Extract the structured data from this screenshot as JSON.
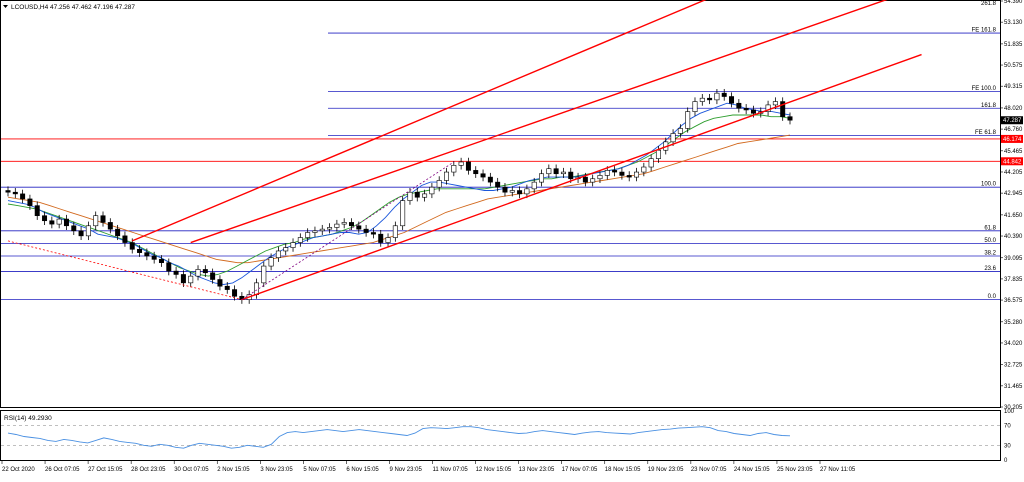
{
  "header": {
    "symbol_line": "LCOUSD,H4  47.256 47.462 47.196 47.287",
    "dropdown_icon": "triangle-down-icon"
  },
  "colors": {
    "background": "#ffffff",
    "frame": "#000000",
    "candle_up": "#ffffff",
    "candle_down": "#000000",
    "ma_fast": "#1a56db",
    "ma_mid": "#2e9e2e",
    "ma_slow": "#d2691e",
    "channel": "#ff0000",
    "fib_line": "#2020c0",
    "horizontal_red": "#ff0000",
    "price_tag_bg": "#000000",
    "level_tag_bg": "#ff0000",
    "rsi_line": "#4a90e2"
  },
  "chart_data": [
    {
      "type": "candlestick",
      "symbol": "LCOUSD",
      "timeframe": "H4",
      "ylim": [
        30.205,
        54.39
      ],
      "price_axis": [
        "54.390",
        "53.130",
        "51.835",
        "50.575",
        "49.315",
        "48.020",
        "46.760",
        "45.465",
        "44.205",
        "42.945",
        "41.650",
        "40.390",
        "39.095",
        "37.835",
        "36.575",
        "35.280",
        "34.020",
        "32.725",
        "31.465",
        "30.205"
      ],
      "date_axis": [
        "22 Oct 2020",
        "26 Oct 07:05",
        "27 Oct 15:05",
        "28 Oct 23:05",
        "30 Oct 07:05",
        "2 Nov 15:05",
        "3 Nov 23:05",
        "5 Nov 07:05",
        "6 Nov 15:05",
        "9 Nov 23:05",
        "11 Nov 07:05",
        "12 Nov 15:05",
        "13 Nov 23:05",
        "17 Nov 07:05",
        "18 Nov 15:05",
        "19 Nov 23:05",
        "23 Nov 07:05",
        "24 Nov 15:05",
        "25 Nov 23:05",
        "27 Nov 11:05"
      ],
      "current_price": "47.287",
      "red_levels": [
        {
          "value": 46.174,
          "label": "46.174"
        },
        {
          "value": 44.842,
          "label": "44.842"
        }
      ],
      "fib_levels": [
        {
          "value": 54.6,
          "label": "261.8"
        },
        {
          "value": 52.48,
          "label": "FE 161.8"
        },
        {
          "value": 49.0,
          "label": "FE 100.0"
        },
        {
          "value": 48.0,
          "label": "161.8"
        },
        {
          "value": 46.37,
          "label": "FE 61.8"
        },
        {
          "value": 43.3,
          "label": "100.0"
        },
        {
          "value": 40.7,
          "label": "61.8"
        },
        {
          "value": 39.95,
          "label": "50.0"
        },
        {
          "value": 39.2,
          "label": "38.2"
        },
        {
          "value": 38.28,
          "label": "23.6"
        },
        {
          "value": 36.6,
          "label": "0.0"
        }
      ],
      "closes": [
        43.0,
        42.9,
        42.6,
        42.2,
        41.6,
        41.3,
        41.1,
        41.4,
        41.0,
        40.7,
        40.4,
        41.0,
        41.6,
        41.2,
        40.8,
        40.4,
        40.0,
        39.6,
        39.4,
        39.2,
        39.0,
        38.8,
        38.3,
        38.1,
        37.6,
        38.0,
        38.4,
        38.2,
        37.8,
        37.4,
        37.2,
        36.8,
        36.6,
        36.9,
        37.6,
        38.6,
        39.1,
        39.5,
        39.7,
        40.0,
        40.3,
        40.6,
        40.7,
        40.8,
        40.9,
        41.1,
        41.2,
        41.0,
        40.8,
        40.6,
        40.5,
        40.0,
        40.3,
        41.0,
        42.5,
        43.0,
        42.7,
        42.9,
        43.3,
        43.7,
        44.2,
        44.6,
        44.8,
        44.3,
        44.1,
        43.9,
        43.6,
        43.3,
        43.0,
        43.1,
        42.9,
        43.2,
        43.6,
        44.1,
        44.4,
        44.1,
        44.2,
        43.8,
        43.9,
        43.6,
        43.8,
        44.0,
        44.3,
        44.2,
        44.0,
        43.9,
        44.2,
        44.5,
        45.0,
        45.5,
        46.0,
        46.5,
        46.8,
        47.8,
        48.4,
        48.6,
        48.5,
        48.9,
        48.7,
        48.3,
        48.0,
        47.9,
        47.7,
        47.8,
        48.2,
        48.4,
        47.5,
        47.29
      ],
      "ma_fast": [
        42.5,
        42.4,
        42.3,
        42.1,
        41.8,
        41.6,
        41.4,
        41.2,
        41.0,
        40.8,
        40.5,
        40.4,
        40.3,
        40.1,
        39.9,
        39.6,
        39.3,
        39.1,
        38.8,
        38.6,
        38.3,
        38.0,
        37.8,
        37.6,
        37.5,
        37.6,
        37.9,
        38.3,
        38.7,
        39.1,
        39.4,
        39.7,
        39.9,
        40.1,
        40.3,
        40.4,
        40.5,
        40.6,
        40.6,
        40.5,
        40.6,
        41.0,
        41.5,
        42.1,
        42.6,
        43.0,
        43.4,
        43.6,
        43.6,
        43.5,
        43.4,
        43.3,
        43.2,
        43.1,
        43.1,
        43.2,
        43.3,
        43.5,
        43.7,
        43.8,
        43.9,
        43.9,
        43.9,
        43.9,
        44.0,
        44.1,
        44.2,
        44.3,
        44.4,
        44.6,
        44.9,
        45.2,
        45.6,
        46.0,
        46.5,
        47.0,
        47.4,
        47.7,
        47.9,
        48.1,
        48.3,
        48.2,
        48.0,
        47.9,
        47.8,
        47.8,
        47.7,
        47.6
      ],
      "ma_mid": [
        42.3,
        42.2,
        42.1,
        42.0,
        41.8,
        41.6,
        41.4,
        41.2,
        41.0,
        40.8,
        40.6,
        40.4,
        40.2,
        40.0,
        39.7,
        39.4,
        39.1,
        38.8,
        38.5,
        38.3,
        38.1,
        38.0,
        38.1,
        38.3,
        38.6,
        38.9,
        39.2,
        39.5,
        39.7,
        39.9,
        40.0,
        40.2,
        40.3,
        40.4,
        40.5,
        40.7,
        40.9,
        41.2,
        41.6,
        42.0,
        42.4,
        42.7,
        42.9,
        43.0,
        43.1,
        43.2,
        43.2,
        43.2,
        43.2,
        43.2,
        43.2,
        43.3,
        43.4,
        43.5,
        43.6,
        43.7,
        43.8,
        43.8,
        43.9,
        43.9,
        44.0,
        44.1,
        44.2,
        44.3,
        44.4,
        44.6,
        44.8,
        45.1,
        45.4,
        45.8,
        46.2,
        46.6,
        46.9,
        47.2,
        47.4,
        47.5,
        47.6,
        47.6,
        47.6,
        47.6,
        47.5,
        47.5,
        47.4
      ],
      "ma_slow": [
        42.7,
        42.6,
        42.5,
        42.4,
        42.2,
        42.0,
        41.8,
        41.6,
        41.4,
        41.2,
        41.0,
        40.8,
        40.6,
        40.4,
        40.2,
        40.0,
        39.8,
        39.6,
        39.4,
        39.2,
        39.0,
        38.9,
        38.8,
        38.8,
        38.9,
        39.0,
        39.1,
        39.2,
        39.3,
        39.4,
        39.5,
        39.6,
        39.7,
        39.8,
        39.9,
        40.0,
        40.2,
        40.4,
        40.6,
        40.9,
        41.2,
        41.5,
        41.8,
        42.0,
        42.2,
        42.4,
        42.6,
        42.7,
        42.8,
        42.9,
        43.0,
        43.1,
        43.2,
        43.3,
        43.4,
        43.5,
        43.6,
        43.7,
        43.8,
        43.9,
        44.0,
        44.1,
        44.3,
        44.5,
        44.7,
        44.9,
        45.1,
        45.3,
        45.5,
        45.7,
        45.9,
        46.0,
        46.1,
        46.2,
        46.3,
        46.4
      ]
    },
    {
      "type": "line",
      "title": "RSI(14) 49.2930",
      "ylim": [
        0,
        100
      ],
      "y_ticks": [
        "100",
        "70",
        "30",
        "0"
      ],
      "levels": [
        70,
        30
      ],
      "values": [
        55,
        52,
        48,
        46,
        44,
        40,
        38,
        42,
        40,
        37,
        35,
        40,
        45,
        42,
        38,
        36,
        34,
        30,
        28,
        32,
        30,
        26,
        24,
        30,
        34,
        32,
        30,
        28,
        24,
        26,
        30,
        28,
        26,
        32,
        48,
        56,
        58,
        56,
        58,
        60,
        62,
        60,
        58,
        60,
        62,
        60,
        58,
        56,
        54,
        52,
        50,
        55,
        64,
        66,
        65,
        64,
        66,
        68,
        68,
        66,
        62,
        60,
        58,
        56,
        54,
        55,
        58,
        60,
        58,
        56,
        54,
        52,
        55,
        57,
        58,
        56,
        55,
        54,
        53,
        56,
        58,
        60,
        62,
        63,
        65,
        66,
        67,
        68,
        66,
        60,
        58,
        54,
        52,
        50,
        54,
        56,
        52,
        50,
        49.29
      ]
    }
  ]
}
